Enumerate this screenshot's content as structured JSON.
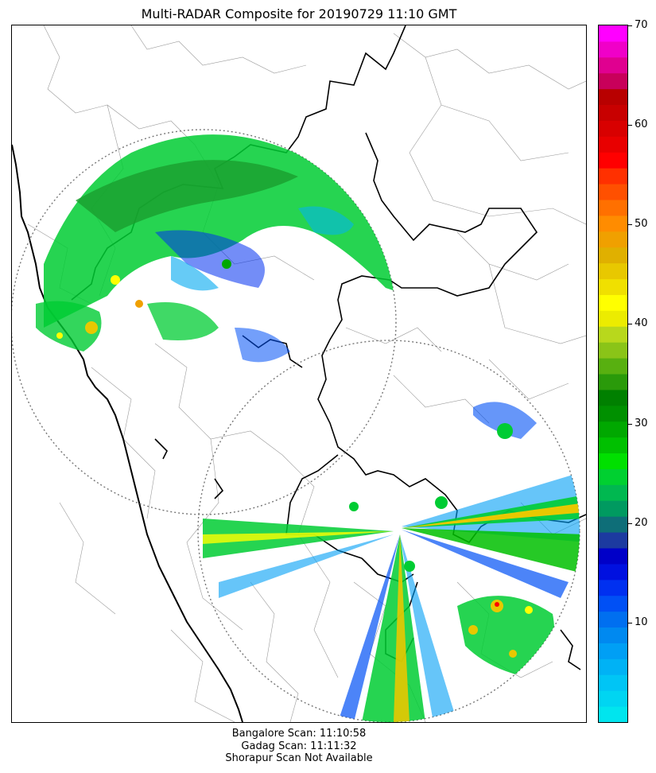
{
  "title": "Multi-RADAR Composite for 20190729 11:10 GMT",
  "colorbar": {
    "min": 0,
    "max": 70,
    "ticks": [
      10,
      20,
      30,
      40,
      50,
      60,
      70
    ],
    "colors": [
      "#00e5ee",
      "#00d5f2",
      "#00c5f5",
      "#00b2f5",
      "#009ff5",
      "#0089f0",
      "#006ff0",
      "#0050f5",
      "#0030f0",
      "#0010e0",
      "#0000c8",
      "#1c3aa0",
      "#0e6e78",
      "#009a60",
      "#00b850",
      "#00d030",
      "#00e000",
      "#00c000",
      "#00a800",
      "#009000",
      "#008000",
      "#2a9a0a",
      "#58b010",
      "#8ac418",
      "#b8d81c",
      "#ecec00",
      "#ffff00",
      "#f0e000",
      "#e8c800",
      "#e0b000",
      "#f0a000",
      "#ff8c00",
      "#ff7000",
      "#ff5000",
      "#ff3000",
      "#ff0000",
      "#e80000",
      "#d80000",
      "#c80000",
      "#b80000",
      "#c8005a",
      "#e00090",
      "#f000c8",
      "#ff00ff"
    ]
  },
  "scans": [
    "Bangalore Scan: 11:10:58",
    "Gadag Scan: 11:11:32",
    "Shorapur Scan Not Available"
  ]
}
